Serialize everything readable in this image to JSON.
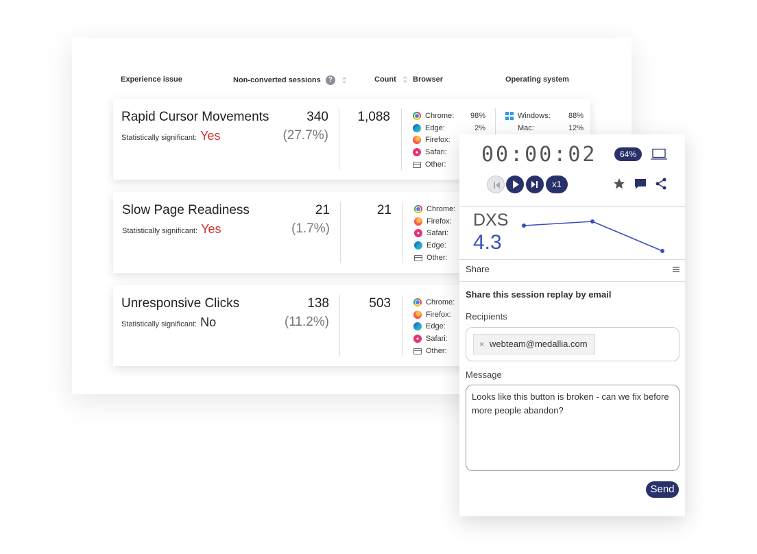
{
  "table": {
    "columns": {
      "experience_issue": "Experience issue",
      "non_converted": "Non-converted sessions",
      "help": "?",
      "count": "Count",
      "browser": "Browser",
      "os": "Operating system"
    },
    "rows": [
      {
        "title": "Rapid Cursor Movements",
        "sig_label": "Statistically significant:",
        "sig_value": "Yes",
        "sessions": "340",
        "sessions_pct": "(27.7%)",
        "count": "1,088",
        "browsers": [
          {
            "name": "Chrome:",
            "pct": "98%",
            "icon": "chrome"
          },
          {
            "name": "Edge:",
            "pct": "2%",
            "icon": "edge"
          },
          {
            "name": "Firefox:",
            "pct": "",
            "icon": "firefox"
          },
          {
            "name": "Safari:",
            "pct": "",
            "icon": "safari"
          },
          {
            "name": "Other:",
            "pct": "",
            "icon": "other"
          }
        ],
        "os": [
          {
            "name": "Windows:",
            "pct": "88%",
            "icon": "windows"
          },
          {
            "name": "Mac:",
            "pct": "12%",
            "icon": "apple"
          }
        ]
      },
      {
        "title": "Slow Page Readiness",
        "sig_label": "Statistically significant:",
        "sig_value": "Yes",
        "sessions": "21",
        "sessions_pct": "(1.7%)",
        "count": "21",
        "browsers": [
          {
            "name": "Chrome:",
            "pct": "",
            "icon": "chrome"
          },
          {
            "name": "Firefox:",
            "pct": "",
            "icon": "firefox"
          },
          {
            "name": "Safari:",
            "pct": "",
            "icon": "safari"
          },
          {
            "name": "Edge:",
            "pct": "",
            "icon": "edge"
          },
          {
            "name": "Other:",
            "pct": "",
            "icon": "other"
          }
        ]
      },
      {
        "title": "Unresponsive Clicks",
        "sig_label": "Statistically significant:",
        "sig_value": "No",
        "sessions": "138",
        "sessions_pct": "(11.2%)",
        "count": "503",
        "browsers": [
          {
            "name": "Chrome:",
            "pct": "",
            "icon": "chrome"
          },
          {
            "name": "Firefox:",
            "pct": "",
            "icon": "firefox"
          },
          {
            "name": "Edge:",
            "pct": "",
            "icon": "edge"
          },
          {
            "name": "Safari:",
            "pct": "",
            "icon": "safari"
          },
          {
            "name": "Other:",
            "pct": "",
            "icon": "other"
          }
        ]
      }
    ]
  },
  "player": {
    "timer": "00:00:02",
    "progress_badge": "64%",
    "speed": "x1",
    "dxs_label": "DXS",
    "dxs_value": "4.3",
    "share_header": "Share",
    "share_title": "Share this session replay by email",
    "recipients_label": "Recipients",
    "recipient_chip": "webteam@medallia.com",
    "chip_remove": "×",
    "message_label": "Message",
    "message_text": "Looks like this button is broken - can we fix before more people abandon?",
    "send_label": "Send"
  },
  "colors": {
    "accent": "#29316b",
    "dxs_line": "#3b4cbf",
    "sig_yes": "#d32f2f"
  }
}
